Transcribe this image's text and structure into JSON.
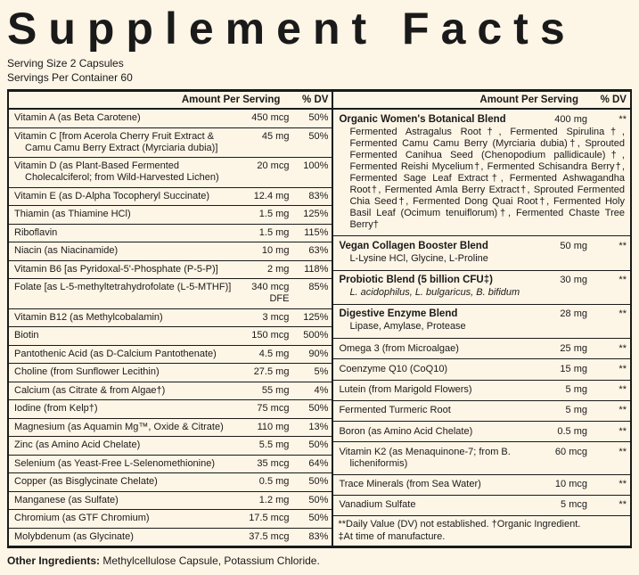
{
  "colors": {
    "background": "#fdf5e6",
    "text": "#1a1a1a"
  },
  "header": {
    "title": "Supplement Facts",
    "serving_size": "Serving Size 2 Capsules",
    "servings_per_container": "Servings Per Container 60"
  },
  "columns": {
    "amount_header": "Amount Per Serving",
    "dv_header": "% DV"
  },
  "left_rows": [
    {
      "name": "Vitamin A (as Beta Carotene)",
      "amount": "450 mcg",
      "dv": "50%"
    },
    {
      "name": "Vitamin C [from Acerola Cherry Fruit Extract & Camu Camu Berry Extract (Myrciaria dubia)]",
      "amount": "45 mg",
      "dv": "50%"
    },
    {
      "name": "Vitamin D (as Plant-Based Fermented Cholecalciferol; from Wild-Harvested Lichen)",
      "amount": "20 mcg",
      "dv": "100%"
    },
    {
      "name": "Vitamin E (as D-Alpha Tocopheryl Succinate)",
      "amount": "12.4 mg",
      "dv": "83%"
    },
    {
      "name": "Thiamin (as Thiamine HCl)",
      "amount": "1.5 mg",
      "dv": "125%"
    },
    {
      "name": "Riboflavin",
      "amount": "1.5 mg",
      "dv": "115%"
    },
    {
      "name": "Niacin (as Niacinamide)",
      "amount": "10 mg",
      "dv": "63%"
    },
    {
      "name": "Vitamin B6 [as Pyridoxal-5'-Phosphate (P-5-P)]",
      "amount": "2 mg",
      "dv": "118%"
    },
    {
      "name": "Folate [as L-5-methyltetrahydrofolate (L-5-MTHF)]",
      "amount": "340 mcg DFE",
      "dv": "85%"
    },
    {
      "name": "Vitamin B12 (as Methylcobalamin)",
      "amount": "3 mcg",
      "dv": "125%"
    },
    {
      "name": "Biotin",
      "amount": "150 mcg",
      "dv": "500%"
    },
    {
      "name": "Pantothenic Acid (as D-Calcium Pantothenate)",
      "amount": "4.5 mg",
      "dv": "90%"
    },
    {
      "name": "Choline (from Sunflower Lecithin)",
      "amount": "27.5 mg",
      "dv": "5%"
    },
    {
      "name": "Calcium (as Citrate & from Algae†)",
      "amount": "55 mg",
      "dv": "4%"
    },
    {
      "name": "Iodine (from Kelp†)",
      "amount": "75 mcg",
      "dv": "50%"
    },
    {
      "name": "Magnesium (as Aquamin Mg™, Oxide & Citrate)",
      "amount": "110 mg",
      "dv": "13%"
    },
    {
      "name": "Zinc (as Amino Acid Chelate)",
      "amount": "5.5 mg",
      "dv": "50%"
    },
    {
      "name": "Selenium (as Yeast-Free L-Selenomethionine)",
      "amount": "35 mcg",
      "dv": "64%"
    },
    {
      "name": "Copper (as Bisglycinate Chelate)",
      "amount": "0.5 mg",
      "dv": "50%"
    },
    {
      "name": "Manganese (as Sulfate)",
      "amount": "1.2 mg",
      "dv": "50%"
    },
    {
      "name": "Chromium (as GTF Chromium)",
      "amount": "17.5 mcg",
      "dv": "50%"
    },
    {
      "name": "Molybdenum (as Glycinate)",
      "amount": "37.5 mcg",
      "dv": "83%"
    }
  ],
  "right_rows": [
    {
      "name": "Organic Women's Botanical Blend",
      "amount": "400 mg",
      "dv": "**",
      "bold": true,
      "sub": "Fermented Astragalus Root†, Fermented Spirulina†, Fermented Camu Camu Berry (Myrciaria dubia)†, Sprouted Fermented Canihua Seed (Chenopodium pallidicaule)†, Fermented Reishi Mycelium†, Fermented Schisandra Berry†, Fermented Sage Leaf Extract†, Fermented Ashwagandha Root†, Fermented Amla Berry Extract†, Sprouted Fermented Chia Seed†, Fermented Dong Quai Root†, Fermented Holy Basil Leaf (Ocimum tenuiflorum)†, Fermented Chaste Tree Berry†",
      "sub_justify": true
    },
    {
      "name": "Vegan Collagen Booster Blend",
      "amount": "50 mg",
      "dv": "**",
      "bold": true,
      "sub": "L-Lysine HCl, Glycine, L-Proline"
    },
    {
      "name": "Probiotic Blend (5 billion CFU‡)",
      "amount": "30 mg",
      "dv": "**",
      "bold": true,
      "sub": "L. acidophilus, L. bulgaricus, B. bifidum",
      "sub_italic": true
    },
    {
      "name": "Digestive Enzyme Blend",
      "amount": "28 mg",
      "dv": "**",
      "bold": true,
      "sub": "Lipase, Amylase, Protease"
    },
    {
      "name": "Omega 3 (from Microalgae)",
      "amount": "25 mg",
      "dv": "**"
    },
    {
      "name": "Coenzyme Q10 (CoQ10)",
      "amount": "15 mg",
      "dv": "**"
    },
    {
      "name": "Lutein (from Marigold Flowers)",
      "amount": "5 mg",
      "dv": "**"
    },
    {
      "name": "Fermented Turmeric Root",
      "amount": "5 mg",
      "dv": "**"
    },
    {
      "name": "Boron (as Amino Acid Chelate)",
      "amount": "0.5 mg",
      "dv": "**"
    },
    {
      "name": "Vitamin K2 (as Menaquinone-7; from B. licheniformis)",
      "amount": "60 mcg",
      "dv": "**"
    },
    {
      "name": "Trace Minerals (from Sea Water)",
      "amount": "10 mcg",
      "dv": "**"
    },
    {
      "name": "Vanadium Sulfate",
      "amount": "5 mcg",
      "dv": "**"
    }
  ],
  "footnotes": {
    "line1": "**Daily Value (DV) not established.  †Organic Ingredient.",
    "line2": "‡At time of manufacture."
  },
  "other_ingredients": {
    "label": "Other Ingredients:",
    "text": " Methylcellulose Capsule, Potassium Chloride."
  }
}
